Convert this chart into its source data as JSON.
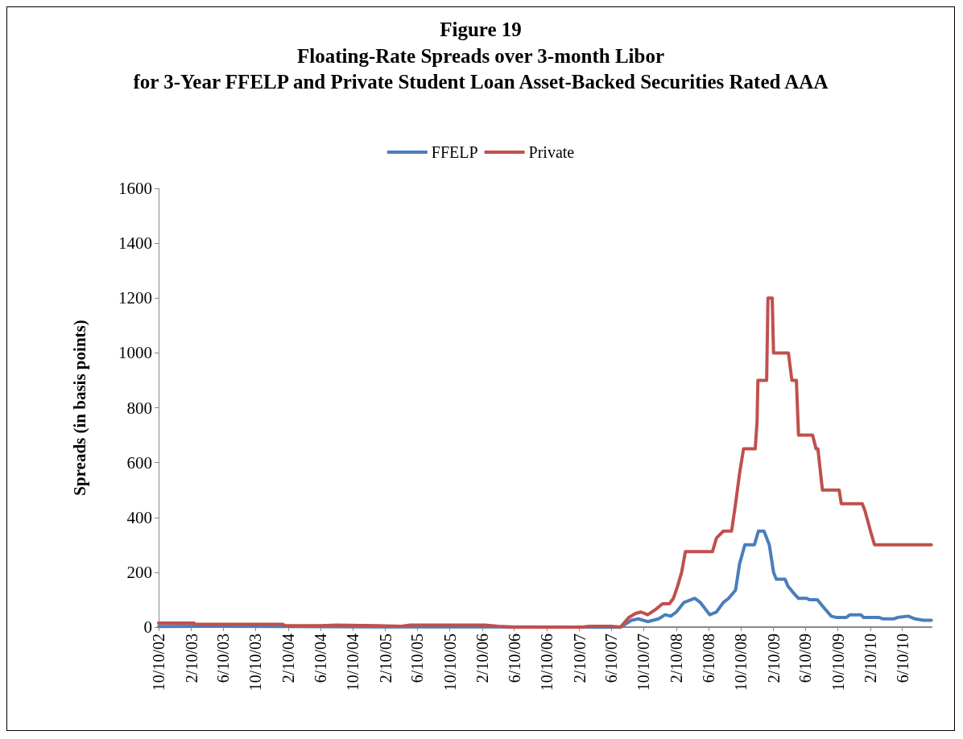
{
  "chart_data": {
    "type": "line",
    "title": "Figure 19",
    "subtitle": "Floating-Rate Spreads over 3-month Libor\nfor 3-Year FFELP and Private Student Loan Asset-Backed Securities Rated AAA",
    "ylabel": "Spreads (in basis points)",
    "xlim": [
      "2002-10-10",
      "2010-09-28"
    ],
    "ylim": [
      0,
      1600
    ],
    "yticks": [
      0,
      200,
      400,
      600,
      800,
      1000,
      1200,
      1400,
      1600
    ],
    "xticks": [
      {
        "value": "2002-10-10",
        "label": "10/10/02"
      },
      {
        "value": "2003-02-10",
        "label": "2/10/03"
      },
      {
        "value": "2003-06-10",
        "label": "6/10/03"
      },
      {
        "value": "2003-10-10",
        "label": "10/10/03"
      },
      {
        "value": "2004-02-10",
        "label": "2/10/04"
      },
      {
        "value": "2004-06-10",
        "label": "6/10/04"
      },
      {
        "value": "2004-10-10",
        "label": "10/10/04"
      },
      {
        "value": "2005-02-10",
        "label": "2/10/05"
      },
      {
        "value": "2005-06-10",
        "label": "6/10/05"
      },
      {
        "value": "2005-10-10",
        "label": "10/10/05"
      },
      {
        "value": "2006-02-10",
        "label": "2/10/06"
      },
      {
        "value": "2006-06-10",
        "label": "6/10/06"
      },
      {
        "value": "2006-10-10",
        "label": "10/10/06"
      },
      {
        "value": "2007-02-10",
        "label": "2/10/07"
      },
      {
        "value": "2007-06-10",
        "label": "6/10/07"
      },
      {
        "value": "2007-10-10",
        "label": "10/10/07"
      },
      {
        "value": "2008-02-10",
        "label": "2/10/08"
      },
      {
        "value": "2008-06-10",
        "label": "6/10/08"
      },
      {
        "value": "2008-10-10",
        "label": "10/10/08"
      },
      {
        "value": "2009-02-10",
        "label": "2/10/09"
      },
      {
        "value": "2009-06-10",
        "label": "6/10/09"
      },
      {
        "value": "2009-10-10",
        "label": "10/10/09"
      },
      {
        "value": "2010-02-10",
        "label": "2/10/10"
      },
      {
        "value": "2010-06-10",
        "label": "6/10/10"
      }
    ],
    "grid": false,
    "legend": "top",
    "marker": "none",
    "line_style": "solid",
    "series": [
      {
        "name": "FFELP",
        "color": "#4a7ebb",
        "x": [
          "2002-10-10",
          "2003-06-10",
          "2004-01-20",
          "2005-01-10",
          "2006-03-01",
          "2007-02-01",
          "2007-06-10",
          "2007-07-15",
          "2007-08-25",
          "2007-09-20",
          "2007-10-25",
          "2007-12-05",
          "2007-12-30",
          "2008-01-20",
          "2008-02-10",
          "2008-03-10",
          "2008-04-20",
          "2008-05-10",
          "2008-06-15",
          "2008-07-10",
          "2008-08-05",
          "2008-08-25",
          "2008-09-20",
          "2008-10-05",
          "2008-10-25",
          "2008-11-30",
          "2008-12-15",
          "2009-01-05",
          "2009-01-25",
          "2009-02-10",
          "2009-02-20",
          "2009-03-25",
          "2009-04-05",
          "2009-04-30",
          "2009-05-15",
          "2009-06-15",
          "2009-06-25",
          "2009-07-25",
          "2009-08-15",
          "2009-09-15",
          "2009-10-05",
          "2009-11-10",
          "2009-11-25",
          "2010-01-05",
          "2010-01-15",
          "2010-03-15",
          "2010-03-30",
          "2010-05-08",
          "2010-05-22",
          "2010-07-02",
          "2010-07-28",
          "2010-08-28",
          "2010-09-27"
        ],
        "values": [
          2,
          3,
          2,
          1,
          1,
          0,
          0,
          0,
          25,
          30,
          20,
          30,
          45,
          40,
          55,
          90,
          105,
          90,
          45,
          55,
          90,
          105,
          135,
          230,
          300,
          300,
          350,
          350,
          300,
          200,
          175,
          175,
          150,
          120,
          105,
          105,
          100,
          100,
          75,
          40,
          35,
          35,
          45,
          45,
          35,
          35,
          30,
          30,
          35,
          40,
          30,
          25,
          25
        ]
      },
      {
        "name": "Private",
        "color": "#c0504d",
        "x": [
          "2002-10-10",
          "2003-02-20",
          "2003-02-25",
          "2004-01-20",
          "2004-01-30",
          "2004-06-10",
          "2004-08-10",
          "2005-01-10",
          "2005-04-10",
          "2005-05-10",
          "2006-02-20",
          "2006-04-10",
          "2006-06-01",
          "2007-02-20",
          "2007-03-20",
          "2007-06-10",
          "2007-07-15",
          "2007-08-15",
          "2007-09-10",
          "2007-09-30",
          "2007-10-25",
          "2007-11-25",
          "2007-12-20",
          "2008-01-15",
          "2008-01-30",
          "2008-02-15",
          "2008-03-01",
          "2008-03-15",
          "2008-03-20",
          "2008-06-25",
          "2008-07-10",
          "2008-08-05",
          "2008-09-05",
          "2008-09-20",
          "2008-10-05",
          "2008-10-20",
          "2008-12-03",
          "2008-12-10",
          "2008-12-13",
          "2009-01-15",
          "2009-01-20",
          "2009-02-05",
          "2009-02-10",
          "2009-04-07",
          "2009-04-20",
          "2009-05-07",
          "2009-05-15",
          "2009-07-07",
          "2009-07-20",
          "2009-07-27",
          "2009-08-13",
          "2009-10-15",
          "2009-10-23",
          "2010-01-10",
          "2010-01-20",
          "2010-02-10",
          "2010-02-25",
          "2010-09-27"
        ],
        "values": [
          15,
          15,
          10,
          10,
          5,
          5,
          7,
          5,
          3,
          7,
          7,
          3,
          0,
          0,
          3,
          3,
          0,
          35,
          50,
          55,
          45,
          65,
          85,
          85,
          105,
          150,
          200,
          275,
          275,
          275,
          325,
          350,
          350,
          450,
          560,
          650,
          650,
          750,
          900,
          900,
          1200,
          1200,
          1000,
          1000,
          900,
          900,
          700,
          700,
          650,
          650,
          500,
          500,
          450,
          450,
          425,
          350,
          300,
          300
        ]
      }
    ]
  }
}
